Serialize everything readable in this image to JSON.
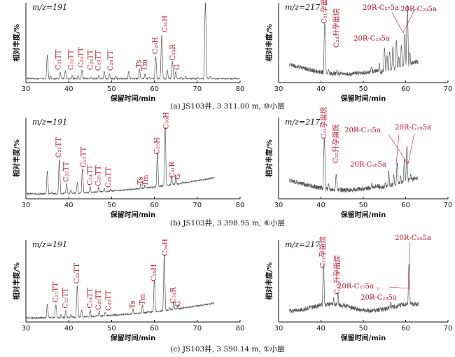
{
  "colors": {
    "trace": "#555555",
    "label": "#c0102a",
    "axis": "#111111"
  },
  "common": {
    "xlabel": "保留时间/min",
    "ylabel": "相对丰度/%"
  },
  "chart_data": [
    {
      "id": "a191",
      "type": "line",
      "mz_text": "m/z=191",
      "xlim": [
        30,
        80
      ],
      "xticks": [
        30,
        40,
        50,
        60,
        70,
        80
      ],
      "trace_range": [
        30,
        80
      ],
      "baseline": 0.04,
      "peaks": [
        [
          35.0,
          0.33
        ],
        [
          35.8,
          0.06
        ],
        [
          38.0,
          0.11
        ],
        [
          39.2,
          0.13
        ],
        [
          40.8,
          0.07
        ],
        [
          42.2,
          0.07
        ],
        [
          43.1,
          0.14
        ],
        [
          45.2,
          0.05
        ],
        [
          47.0,
          0.07
        ],
        [
          48.3,
          0.12
        ],
        [
          49.5,
          0.09
        ],
        [
          51.0,
          0.06
        ],
        [
          54.0,
          0.12
        ],
        [
          56.5,
          0.15
        ],
        [
          57.8,
          0.09
        ],
        [
          58.8,
          0.05
        ],
        [
          60.3,
          0.31
        ],
        [
          61.7,
          0.58
        ],
        [
          63.0,
          0.14
        ],
        [
          64.2,
          0.25
        ],
        [
          65.0,
          0.12
        ],
        [
          66.2,
          0.05
        ],
        [
          67.3,
          0.06
        ],
        [
          70.0,
          0.05
        ],
        [
          71.9,
          1.0
        ],
        [
          73.0,
          0.06
        ]
      ],
      "annotations": [
        {
          "text": "C₂₁TT",
          "x": 38.2,
          "base": 0.14,
          "dx": -3
        },
        {
          "text": "C₂₂TT",
          "x": 39.5,
          "base": 0.14,
          "dx": 7
        },
        {
          "text": "C₂₃TT",
          "x": 43.3,
          "base": 0.17,
          "dx": -2
        },
        {
          "text": "C₂₄TT",
          "x": 45.2,
          "base": 0.14,
          "dx": 0
        },
        {
          "text": "C₂₅TT",
          "x": 47.0,
          "base": 0.13,
          "dx": 0
        },
        {
          "text": "C₂₆TT",
          "x": 49.2,
          "base": 0.13,
          "dx": 4
        },
        {
          "text": "Ts",
          "x": 56.5,
          "base": 0.17,
          "dx": 0
        },
        {
          "text": "Tm",
          "x": 57.8,
          "base": 0.13,
          "dx": 0
        },
        {
          "text": "C₂₉H",
          "x": 60.3,
          "base": 0.34,
          "dx": 0
        },
        {
          "text": "C₃₀H",
          "x": 61.9,
          "base": 0.61,
          "dx": 4
        },
        {
          "text": "C₃₁R",
          "x": 64.4,
          "base": 0.26,
          "dx": 0
        },
        {
          "text": "G",
          "x": 65.4,
          "base": 0.14,
          "dx": 0
        }
      ]
    },
    {
      "id": "a217",
      "type": "line",
      "mz_text": "m/z=217",
      "xlim": [
        30,
        70
      ],
      "xticks": [
        30,
        40,
        50,
        60,
        70
      ],
      "trace_range": [
        32.5,
        63
      ],
      "profile": "bowl",
      "peaks": [
        [
          34.0,
          0.06
        ],
        [
          35.0,
          0.05
        ],
        [
          36.5,
          0.06
        ],
        [
          38.0,
          0.05
        ],
        [
          40.9,
          0.7
        ],
        [
          41.8,
          0.12
        ],
        [
          43.8,
          0.12
        ],
        [
          45.0,
          0.08
        ],
        [
          47.0,
          0.05
        ],
        [
          51.9,
          0.14
        ],
        [
          53.8,
          0.18
        ],
        [
          55.0,
          0.38
        ],
        [
          55.6,
          0.28
        ],
        [
          56.2,
          0.32
        ],
        [
          57.0,
          0.38
        ],
        [
          57.8,
          0.45
        ],
        [
          58.4,
          0.24
        ],
        [
          59.0,
          0.38
        ],
        [
          59.8,
          0.52
        ],
        [
          60.4,
          0.88
        ],
        [
          61.0,
          0.28
        ],
        [
          62.0,
          0.15
        ]
      ],
      "annotations": [
        {
          "text": "C₂₁孕甾烷",
          "x": 40.9,
          "base": 0.72,
          "dx": 0
        },
        {
          "text": "C₂₂升孕甾烷",
          "x": 43.8,
          "base": 0.42,
          "dx": 0
        }
      ],
      "callouts": [
        {
          "text": "20R-C₂₇5a",
          "tx": 544,
          "ty": 14,
          "targets": []
        },
        {
          "text": "20R-C₂₉5a",
          "tx": 598,
          "ty": 16,
          "targets": []
        },
        {
          "text": "20R-C₂₈5a",
          "tx": 531,
          "ty": 58,
          "targets": []
        }
      ],
      "extra_lines": "a"
    },
    {
      "id": "b191",
      "type": "line",
      "mz_text": "m/z=191",
      "xlim": [
        30,
        80
      ],
      "xticks": [
        30,
        40,
        50,
        60,
        70,
        80
      ],
      "trace_range": [
        30,
        74
      ],
      "baseline": 0.05,
      "rise": 0.2,
      "peaks": [
        [
          35.0,
          0.32
        ],
        [
          36.0,
          0.06
        ],
        [
          37.8,
          0.46
        ],
        [
          39.5,
          0.16
        ],
        [
          40.5,
          0.08
        ],
        [
          42.0,
          0.17
        ],
        [
          43.2,
          0.34
        ],
        [
          45.0,
          0.12
        ],
        [
          47.0,
          0.11
        ],
        [
          48.3,
          0.09
        ],
        [
          49.7,
          0.08
        ],
        [
          52.0,
          0.05
        ],
        [
          55.0,
          0.05
        ],
        [
          56.8,
          0.13
        ],
        [
          57.8,
          0.11
        ],
        [
          59.0,
          0.05
        ],
        [
          60.7,
          0.5
        ],
        [
          62.5,
          0.81
        ],
        [
          64.0,
          0.21
        ],
        [
          65.0,
          0.2
        ],
        [
          66.5,
          0.12
        ],
        [
          67.5,
          0.06
        ],
        [
          73.5,
          0.1
        ]
      ],
      "annotations": [
        {
          "text": "C₂₁TT",
          "x": 37.8,
          "base": 0.49,
          "dx": 0
        },
        {
          "text": "C₂₂TT",
          "x": 39.5,
          "base": 0.19,
          "dx": 0
        },
        {
          "text": "C₂₃TT",
          "x": 43.2,
          "base": 0.37,
          "dx": 2
        },
        {
          "text": "C₂₄TT",
          "x": 45.0,
          "base": 0.15,
          "dx": 0
        },
        {
          "text": "C₂₅TT",
          "x": 47.0,
          "base": 0.14,
          "dx": 0
        },
        {
          "text": "C₂₆TT",
          "x": 48.7,
          "base": 0.12,
          "dx": 4
        },
        {
          "text": "Ts",
          "x": 56.8,
          "base": 0.16,
          "dx": 0
        },
        {
          "text": "Tm",
          "x": 58.0,
          "base": 0.14,
          "dx": 0
        },
        {
          "text": "C₂₉H",
          "x": 60.7,
          "base": 0.53,
          "dx": 0
        },
        {
          "text": "C₃₀H",
          "x": 62.5,
          "base": 0.84,
          "dx": 2
        },
        {
          "text": "C₃₁R",
          "x": 64.2,
          "base": 0.24,
          "dx": 0
        },
        {
          "text": "G",
          "x": 65.2,
          "base": 0.22,
          "dx": 2
        }
      ]
    },
    {
      "id": "b217",
      "type": "line",
      "mz_text": "m/z=217",
      "xlim": [
        30,
        70
      ],
      "xticks": [
        30,
        40,
        50,
        60,
        70
      ],
      "trace_range": [
        32.5,
        63
      ],
      "profile": "bowl",
      "peaks": [
        [
          34.0,
          0.1
        ],
        [
          35.2,
          0.06
        ],
        [
          37.0,
          0.05
        ],
        [
          40.8,
          0.7
        ],
        [
          41.8,
          0.14
        ],
        [
          43.6,
          0.26
        ],
        [
          44.5,
          0.1
        ],
        [
          46.0,
          0.05
        ],
        [
          52.0,
          0.14
        ],
        [
          54.0,
          0.1
        ],
        [
          55.2,
          0.14
        ],
        [
          56.0,
          0.28
        ],
        [
          57.2,
          0.22
        ],
        [
          58.0,
          0.36
        ],
        [
          58.8,
          0.2
        ],
        [
          59.7,
          0.4
        ],
        [
          60.3,
          0.55
        ],
        [
          61.2,
          0.2
        ],
        [
          62.0,
          0.14
        ]
      ],
      "annotations": [
        {
          "text": "C₂₁孕甾烷",
          "x": 40.8,
          "base": 0.72,
          "dx": 0
        },
        {
          "text": "C₂₂升孕甾烷",
          "x": 43.6,
          "base": 0.42,
          "dx": 0
        }
      ],
      "callouts": [
        {
          "text": "20R-C₂₇5a",
          "tx": 518,
          "ty": 189,
          "targets": []
        },
        {
          "text": "20R-C₂₉5a",
          "tx": 590,
          "ty": 185,
          "targets": []
        },
        {
          "text": "20R-C₂₈5a",
          "tx": 526,
          "ty": 238,
          "targets": []
        }
      ],
      "extra_lines": "b"
    },
    {
      "id": "c191",
      "type": "line",
      "mz_text": "m/z=191",
      "xlim": [
        30,
        80
      ],
      "xticks": [
        30,
        40,
        50,
        60,
        70,
        80
      ],
      "trace_range": [
        30,
        74
      ],
      "baseline": 0.04,
      "rise": 0.18,
      "peaks": [
        [
          35.0,
          0.2
        ],
        [
          37.0,
          0.19
        ],
        [
          38.2,
          0.07
        ],
        [
          39.3,
          0.12
        ],
        [
          40.5,
          0.07
        ],
        [
          42.0,
          0.42
        ],
        [
          43.0,
          0.12
        ],
        [
          45.0,
          0.12
        ],
        [
          47.1,
          0.1
        ],
        [
          48.5,
          0.09
        ],
        [
          50.0,
          0.05
        ],
        [
          53.0,
          0.05
        ],
        [
          55.0,
          0.12
        ],
        [
          57.2,
          0.16
        ],
        [
          58.5,
          0.06
        ],
        [
          60.0,
          0.45
        ],
        [
          62.3,
          0.76
        ],
        [
          63.5,
          0.11
        ],
        [
          64.5,
          0.18
        ],
        [
          65.5,
          0.14
        ],
        [
          67.5,
          0.07
        ],
        [
          73.4,
          0.12
        ]
      ],
      "annotations": [
        {
          "text": "C₂₁TT",
          "x": 37.0,
          "base": 0.22,
          "dx": 0
        },
        {
          "text": "C₂₂TT",
          "x": 39.3,
          "base": 0.15,
          "dx": 0
        },
        {
          "text": "C₂₃TT",
          "x": 42.0,
          "base": 0.45,
          "dx": 0
        },
        {
          "text": "C₂₄TT",
          "x": 45.0,
          "base": 0.15,
          "dx": 0
        },
        {
          "text": "C₂₅TT",
          "x": 47.1,
          "base": 0.13,
          "dx": 0
        },
        {
          "text": "C₂₆TT",
          "x": 48.7,
          "base": 0.12,
          "dx": 4
        },
        {
          "text": "Ts",
          "x": 55.0,
          "base": 0.15,
          "dx": 0
        },
        {
          "text": "Tm",
          "x": 57.3,
          "base": 0.19,
          "dx": 0
        },
        {
          "text": "C₂₉H",
          "x": 60.0,
          "base": 0.48,
          "dx": 0
        },
        {
          "text": "C₃₀H",
          "x": 62.3,
          "base": 0.79,
          "dx": 2
        },
        {
          "text": "C₃₁R",
          "x": 64.5,
          "base": 0.21,
          "dx": 0
        },
        {
          "text": "G",
          "x": 65.6,
          "base": 0.17,
          "dx": 0
        }
      ]
    },
    {
      "id": "c217",
      "type": "line",
      "mz_text": "m/z=217",
      "xlim": [
        30,
        70
      ],
      "xticks": [
        30,
        40,
        50,
        60,
        70
      ],
      "trace_range": [
        32.5,
        63
      ],
      "profile": "flat",
      "peaks": [
        [
          34.0,
          0.08
        ],
        [
          35.5,
          0.1
        ],
        [
          37.0,
          0.06
        ],
        [
          38.5,
          0.05
        ],
        [
          40.6,
          0.62
        ],
        [
          41.6,
          0.12
        ],
        [
          43.0,
          0.2
        ],
        [
          44.0,
          0.27
        ],
        [
          45.0,
          0.1
        ],
        [
          47.0,
          0.05
        ],
        [
          52.0,
          0.06
        ],
        [
          54.0,
          0.12
        ],
        [
          55.5,
          0.09
        ],
        [
          56.5,
          0.17
        ],
        [
          57.5,
          0.1
        ],
        [
          59.0,
          0.14
        ],
        [
          60.8,
          0.62
        ],
        [
          61.5,
          0.15
        ],
        [
          62.2,
          0.08
        ]
      ],
      "annotations": [
        {
          "text": "C₂₁孕甾烷",
          "x": 40.6,
          "base": 0.64,
          "dx": 0
        },
        {
          "text": "C₂₂升孕甾烷",
          "x": 44.0,
          "base": 0.32,
          "dx": 0
        }
      ],
      "callouts": [
        {
          "text": "20R-C₂₉5a",
          "tx": 590,
          "ty": 343,
          "targets": []
        },
        {
          "text": "20R-C₂₇5a",
          "tx": 508,
          "ty": 412,
          "targets": []
        },
        {
          "text": "20R-C₂₈5a",
          "tx": 541,
          "ty": 428,
          "targets": []
        }
      ],
      "extra_lines": "c"
    }
  ],
  "captions": [
    {
      "text": "(a) JS103井, 3 311.00 m, ⑩小层"
    },
    {
      "text": "(b) JS103井, 3 398.95 m, ⑥小层"
    },
    {
      "text": "(c) JS103井, 3 590.14 m, ①小层"
    }
  ]
}
